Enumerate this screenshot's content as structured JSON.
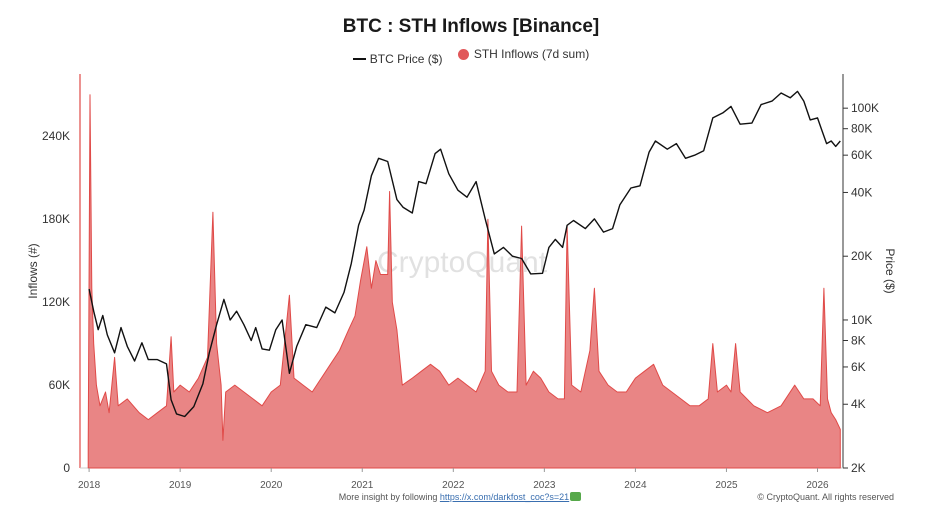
{
  "chart_data": {
    "type": "area",
    "title": "BTC : STH Inflows [Binance]",
    "legend": {
      "placement": "top-center"
    },
    "x": {
      "tick_labels": [
        "2018",
        "2019",
        "2020",
        "2021",
        "2022",
        "2023",
        "2024",
        "2025",
        "2026"
      ]
    },
    "y_left": {
      "label": "Inflows (#)",
      "tick_values": [
        0,
        60000,
        120000,
        180000,
        240000
      ],
      "tick_labels": [
        "0",
        "60K",
        "120K",
        "180K",
        "240K"
      ],
      "range": [
        0,
        285000
      ]
    },
    "y_right": {
      "label": "Price ($)",
      "scale": "log",
      "tick_values": [
        2000,
        4000,
        6000,
        8000,
        10000,
        20000,
        40000,
        60000,
        80000,
        100000
      ],
      "tick_labels": [
        "2K",
        "4K",
        "6K",
        "8K",
        "10K",
        "20K",
        "40K",
        "60K",
        "80K",
        "100K"
      ],
      "range": [
        2000,
        145000
      ]
    },
    "series": [
      {
        "name": "BTC Price ($)",
        "kind": "line",
        "axis": "right",
        "color": "#111111",
        "points": [
          [
            2018.0,
            14000
          ],
          [
            2018.05,
            11000
          ],
          [
            2018.1,
            9000
          ],
          [
            2018.15,
            10500
          ],
          [
            2018.2,
            8500
          ],
          [
            2018.28,
            7000
          ],
          [
            2018.35,
            9200
          ],
          [
            2018.42,
            7500
          ],
          [
            2018.5,
            6400
          ],
          [
            2018.58,
            7800
          ],
          [
            2018.65,
            6500
          ],
          [
            2018.75,
            6500
          ],
          [
            2018.85,
            6200
          ],
          [
            2018.9,
            4200
          ],
          [
            2018.96,
            3600
          ],
          [
            2019.05,
            3500
          ],
          [
            2019.15,
            3900
          ],
          [
            2019.25,
            5000
          ],
          [
            2019.32,
            7000
          ],
          [
            2019.4,
            9500
          ],
          [
            2019.48,
            12500
          ],
          [
            2019.55,
            10000
          ],
          [
            2019.62,
            11000
          ],
          [
            2019.7,
            9500
          ],
          [
            2019.78,
            8000
          ],
          [
            2019.83,
            9200
          ],
          [
            2019.9,
            7300
          ],
          [
            2019.98,
            7200
          ],
          [
            2020.05,
            9000
          ],
          [
            2020.12,
            10000
          ],
          [
            2020.2,
            5600
          ],
          [
            2020.28,
            7500
          ],
          [
            2020.38,
            9500
          ],
          [
            2020.5,
            9200
          ],
          [
            2020.6,
            11500
          ],
          [
            2020.7,
            10800
          ],
          [
            2020.8,
            13500
          ],
          [
            2020.88,
            18500
          ],
          [
            2020.96,
            28000
          ],
          [
            2021.02,
            33000
          ],
          [
            2021.1,
            48000
          ],
          [
            2021.18,
            58000
          ],
          [
            2021.28,
            56000
          ],
          [
            2021.38,
            37000
          ],
          [
            2021.45,
            34000
          ],
          [
            2021.55,
            32000
          ],
          [
            2021.62,
            45000
          ],
          [
            2021.7,
            44000
          ],
          [
            2021.8,
            61000
          ],
          [
            2021.86,
            64000
          ],
          [
            2021.95,
            49000
          ],
          [
            2022.05,
            41000
          ],
          [
            2022.15,
            38000
          ],
          [
            2022.25,
            45000
          ],
          [
            2022.35,
            30000
          ],
          [
            2022.45,
            20500
          ],
          [
            2022.55,
            22000
          ],
          [
            2022.65,
            20000
          ],
          [
            2022.75,
            19500
          ],
          [
            2022.85,
            16500
          ],
          [
            2022.98,
            16600
          ],
          [
            2023.05,
            22000
          ],
          [
            2023.12,
            24000
          ],
          [
            2023.2,
            22000
          ],
          [
            2023.25,
            28000
          ],
          [
            2023.32,
            29500
          ],
          [
            2023.45,
            27000
          ],
          [
            2023.55,
            30000
          ],
          [
            2023.65,
            26000
          ],
          [
            2023.75,
            27000
          ],
          [
            2023.83,
            35000
          ],
          [
            2023.95,
            42000
          ],
          [
            2024.05,
            43000
          ],
          [
            2024.15,
            62000
          ],
          [
            2024.22,
            70000
          ],
          [
            2024.35,
            64000
          ],
          [
            2024.45,
            68000
          ],
          [
            2024.55,
            58000
          ],
          [
            2024.65,
            60000
          ],
          [
            2024.75,
            63000
          ],
          [
            2024.85,
            90000
          ],
          [
            2024.96,
            95000
          ],
          [
            2025.05,
            102000
          ],
          [
            2025.15,
            84000
          ],
          [
            2025.28,
            85000
          ],
          [
            2025.38,
            104000
          ],
          [
            2025.5,
            108000
          ],
          [
            2025.6,
            118000
          ],
          [
            2025.7,
            112000
          ],
          [
            2025.78,
            120000
          ],
          [
            2025.85,
            108000
          ],
          [
            2025.92,
            88000
          ],
          [
            2026.0,
            90000
          ],
          [
            2026.05,
            78000
          ],
          [
            2026.1,
            68000
          ],
          [
            2026.15,
            70000
          ],
          [
            2026.2,
            66000
          ],
          [
            2026.25,
            70000
          ]
        ]
      },
      {
        "name": "STH Inflows (7d sum)",
        "kind": "area",
        "axis": "left",
        "color": "#e15759",
        "points": [
          [
            2017.99,
            15000
          ],
          [
            2018.01,
            270000
          ],
          [
            2018.03,
            130000
          ],
          [
            2018.05,
            90000
          ],
          [
            2018.08,
            60000
          ],
          [
            2018.12,
            45000
          ],
          [
            2018.18,
            55000
          ],
          [
            2018.22,
            40000
          ],
          [
            2018.28,
            80000
          ],
          [
            2018.32,
            45000
          ],
          [
            2018.42,
            50000
          ],
          [
            2018.55,
            40000
          ],
          [
            2018.65,
            35000
          ],
          [
            2018.75,
            40000
          ],
          [
            2018.85,
            45000
          ],
          [
            2018.9,
            95000
          ],
          [
            2018.93,
            55000
          ],
          [
            2019.0,
            60000
          ],
          [
            2019.1,
            55000
          ],
          [
            2019.2,
            65000
          ],
          [
            2019.3,
            80000
          ],
          [
            2019.36,
            185000
          ],
          [
            2019.4,
            90000
          ],
          [
            2019.45,
            60000
          ],
          [
            2019.47,
            20000
          ],
          [
            2019.5,
            55000
          ],
          [
            2019.6,
            60000
          ],
          [
            2019.7,
            55000
          ],
          [
            2019.8,
            50000
          ],
          [
            2019.9,
            45000
          ],
          [
            2020.0,
            55000
          ],
          [
            2020.1,
            60000
          ],
          [
            2020.2,
            125000
          ],
          [
            2020.25,
            65000
          ],
          [
            2020.35,
            60000
          ],
          [
            2020.45,
            55000
          ],
          [
            2020.55,
            65000
          ],
          [
            2020.65,
            75000
          ],
          [
            2020.75,
            85000
          ],
          [
            2020.85,
            100000
          ],
          [
            2020.92,
            110000
          ],
          [
            2020.98,
            135000
          ],
          [
            2021.05,
            160000
          ],
          [
            2021.1,
            130000
          ],
          [
            2021.15,
            150000
          ],
          [
            2021.2,
            140000
          ],
          [
            2021.28,
            140000
          ],
          [
            2021.3,
            200000
          ],
          [
            2021.33,
            120000
          ],
          [
            2021.38,
            100000
          ],
          [
            2021.44,
            60000
          ],
          [
            2021.55,
            65000
          ],
          [
            2021.65,
            70000
          ],
          [
            2021.75,
            75000
          ],
          [
            2021.85,
            70000
          ],
          [
            2021.95,
            60000
          ],
          [
            2022.05,
            65000
          ],
          [
            2022.15,
            60000
          ],
          [
            2022.25,
            55000
          ],
          [
            2022.35,
            70000
          ],
          [
            2022.38,
            180000
          ],
          [
            2022.42,
            70000
          ],
          [
            2022.5,
            60000
          ],
          [
            2022.6,
            55000
          ],
          [
            2022.7,
            55000
          ],
          [
            2022.75,
            175000
          ],
          [
            2022.8,
            60000
          ],
          [
            2022.88,
            70000
          ],
          [
            2022.96,
            65000
          ],
          [
            2023.05,
            55000
          ],
          [
            2023.15,
            50000
          ],
          [
            2023.22,
            50000
          ],
          [
            2023.25,
            175000
          ],
          [
            2023.3,
            60000
          ],
          [
            2023.4,
            55000
          ],
          [
            2023.5,
            85000
          ],
          [
            2023.55,
            130000
          ],
          [
            2023.6,
            70000
          ],
          [
            2023.7,
            60000
          ],
          [
            2023.8,
            55000
          ],
          [
            2023.9,
            55000
          ],
          [
            2024.0,
            65000
          ],
          [
            2024.1,
            70000
          ],
          [
            2024.2,
            75000
          ],
          [
            2024.3,
            60000
          ],
          [
            2024.4,
            55000
          ],
          [
            2024.5,
            50000
          ],
          [
            2024.6,
            45000
          ],
          [
            2024.7,
            45000
          ],
          [
            2024.8,
            50000
          ],
          [
            2024.85,
            90000
          ],
          [
            2024.9,
            55000
          ],
          [
            2025.0,
            60000
          ],
          [
            2025.05,
            55000
          ],
          [
            2025.1,
            90000
          ],
          [
            2025.15,
            55000
          ],
          [
            2025.3,
            45000
          ],
          [
            2025.45,
            40000
          ],
          [
            2025.6,
            45000
          ],
          [
            2025.75,
            60000
          ],
          [
            2025.85,
            50000
          ],
          [
            2025.95,
            50000
          ],
          [
            2026.03,
            45000
          ],
          [
            2026.07,
            130000
          ],
          [
            2026.11,
            50000
          ],
          [
            2026.15,
            40000
          ],
          [
            2026.2,
            35000
          ],
          [
            2026.25,
            28000
          ]
        ]
      }
    ],
    "annotations": [
      {
        "text": "CryptoQuant",
        "kind": "watermark"
      }
    ]
  },
  "footer": {
    "more_insight": "More insight by following",
    "link_text": "https://x.com/darkfost_coc?s=21",
    "copyright": "© CryptoQuant. All rights reserved"
  },
  "colors": {
    "inflow_fill": "#e98585",
    "inflow_stroke": "#e04a48",
    "price_line": "#111111"
  }
}
